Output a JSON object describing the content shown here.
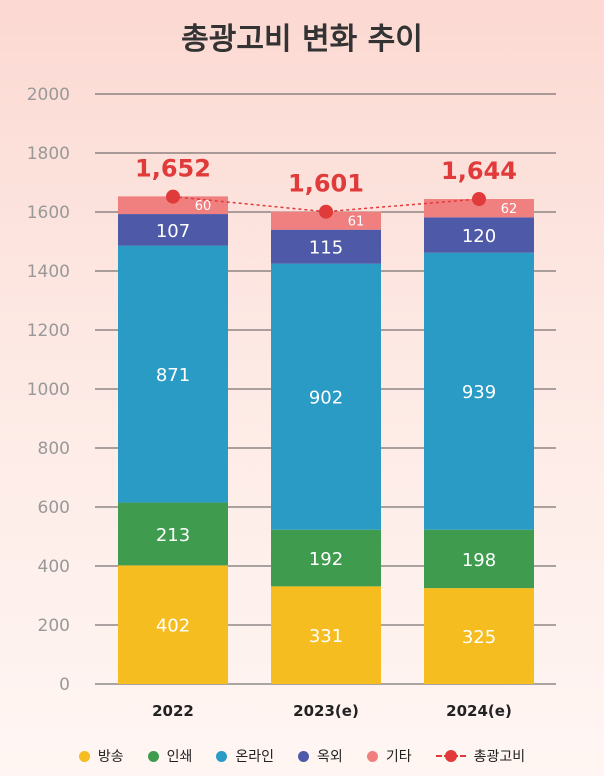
{
  "chart_data": {
    "type": "bar",
    "stacked": true,
    "title": "총광고비 변화 추이",
    "categories": [
      "2022",
      "2023(e)",
      "2024(e)"
    ],
    "ylim": [
      0,
      2000
    ],
    "yticks": [
      0,
      200,
      400,
      600,
      800,
      1000,
      1200,
      1400,
      1600,
      1800,
      2000
    ],
    "ytick_labels": [
      "0",
      "200",
      "400",
      "600",
      "800",
      "1000",
      "1200",
      "1400",
      "1600",
      "1800",
      "2000"
    ],
    "grid": true,
    "series": [
      {
        "name": "방송",
        "color": "#f5bd1f",
        "values": [
          402,
          331,
          325
        ],
        "labels": [
          "402",
          "331",
          "325"
        ]
      },
      {
        "name": "인쇄",
        "color": "#3f9c4e",
        "values": [
          213,
          192,
          198
        ],
        "labels": [
          "213",
          "192",
          "198"
        ]
      },
      {
        "name": "온라인",
        "color": "#2a9bc4",
        "values": [
          871,
          902,
          939
        ],
        "labels": [
          "871",
          "902",
          "939"
        ]
      },
      {
        "name": "옥외",
        "color": "#4e5aa8",
        "values": [
          107,
          115,
          120
        ],
        "labels": [
          "107",
          "115",
          "120"
        ]
      },
      {
        "name": "기타",
        "color": "#f08080",
        "values": [
          60,
          61,
          62
        ],
        "labels": [
          "60",
          "61",
          "62"
        ]
      }
    ],
    "line": {
      "name": "총광고비",
      "color": "#e03a3a",
      "values": [
        1652,
        1601,
        1644
      ],
      "labels": [
        "1,652",
        "1,601",
        "1,644"
      ]
    },
    "legend_position": "bottom"
  }
}
